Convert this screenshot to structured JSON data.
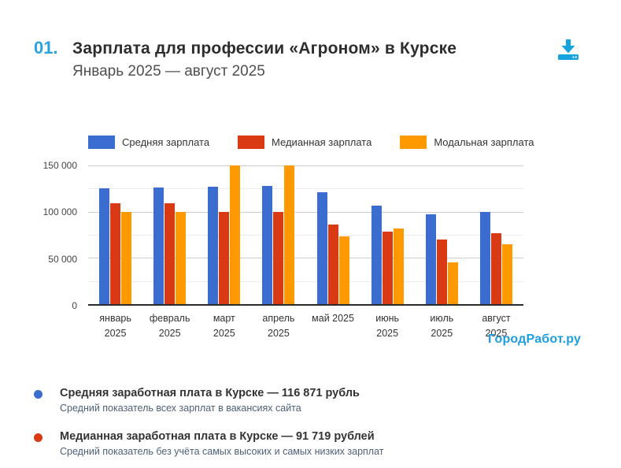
{
  "header": {
    "number": "01.",
    "title": "Зарплата для профессии «Агроном» в Курске",
    "subtitle": "Январь 2025 — август 2025"
  },
  "colors": {
    "accent_blue": "#29a3e0",
    "download_icon": "#17a2e0",
    "watermark_blue": "#1c9fe0",
    "series_average": "#3b6cd0",
    "series_median": "#d93a14",
    "series_mode": "#ff9900"
  },
  "chart_data": {
    "type": "bar",
    "title": "Зарплата для профессии «Агроном» в Курске, январь 2025 — август 2025",
    "categories": [
      [
        "январь",
        "2025"
      ],
      [
        "февраль",
        "2025"
      ],
      [
        "март",
        "2025"
      ],
      [
        "апрель",
        "2025"
      ],
      [
        "май 2025"
      ],
      [
        "июнь",
        "2025"
      ],
      [
        "июль",
        "2025"
      ],
      [
        "август",
        "2025"
      ]
    ],
    "series": [
      {
        "name": "Средняя зарплата",
        "color": "#3b6cd0",
        "values": [
          125000,
          126500,
          127000,
          127500,
          121000,
          106500,
          97500,
          100000
        ]
      },
      {
        "name": "Медианная зарплата",
        "color": "#d93a14",
        "values": [
          109500,
          109500,
          100000,
          100000,
          86000,
          78500,
          70000,
          76500
        ]
      },
      {
        "name": "Модальная зарплата",
        "color": "#ff9900",
        "values": [
          100000,
          100000,
          150000,
          150000,
          73500,
          81500,
          45500,
          65000
        ]
      }
    ],
    "ylim": [
      0,
      150000
    ],
    "yticks": [
      0,
      50000,
      100000,
      150000
    ],
    "ytick_labels": [
      "0",
      "50 000",
      "100 000",
      "150 000"
    ],
    "minor_grid_step": 25000,
    "grid": "horizontal",
    "legend_position": "top"
  },
  "watermark": "ГородРабот.ру",
  "stats": [
    {
      "heading": "Средняя заработная плата в Курске — 116 871 рубль",
      "sub": "Средний показатель всех зарплат в вакансиях сайта"
    },
    {
      "heading": "Медианная заработная плата в Курске — 91 719 рублей",
      "sub": "Средний показатель без учёта самых высоких и самых низких зарплат"
    }
  ]
}
